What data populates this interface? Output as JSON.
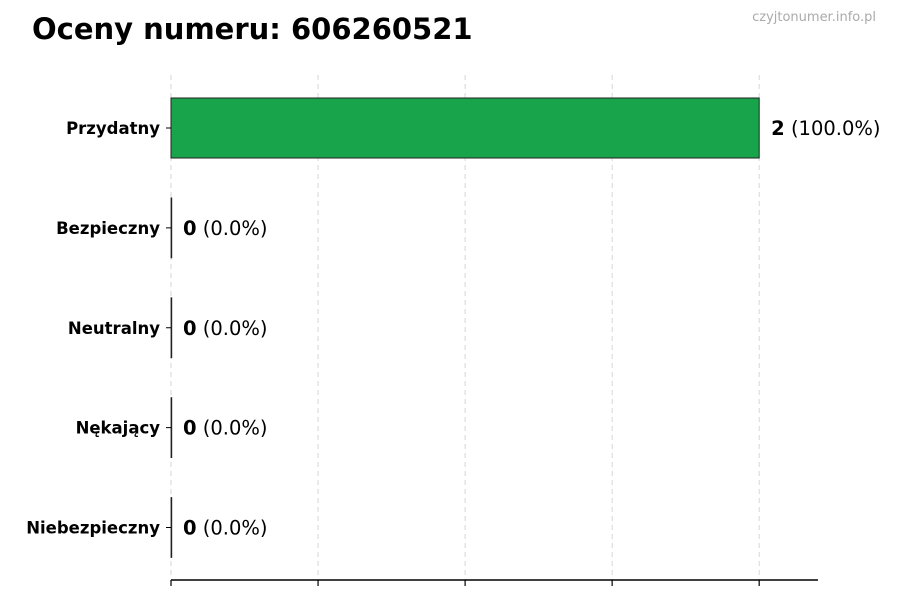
{
  "chart_data": {
    "type": "bar",
    "orientation": "horizontal",
    "title": "Oceny numeru: 606260521",
    "watermark": "czyjtonumer.info.pl",
    "categories": [
      "Przydatny",
      "Bezpieczny",
      "Neutralny",
      "Nękający",
      "Niebezpieczny"
    ],
    "values": [
      2,
      0,
      0,
      0,
      0
    ],
    "data_labels": [
      {
        "count": "2",
        "percent": "(100.0%)"
      },
      {
        "count": "0",
        "percent": "(0.0%)"
      },
      {
        "count": "0",
        "percent": "(0.0%)"
      },
      {
        "count": "0",
        "percent": "(0.0%)"
      },
      {
        "count": "0",
        "percent": "(0.0%)"
      }
    ],
    "xlim": [
      0,
      2.2
    ],
    "x_ticks": [
      0,
      0.5,
      1,
      1.5,
      2
    ],
    "grid": "vertical dashed",
    "bar_color": "#18a44a",
    "xlabel": "",
    "ylabel": ""
  }
}
